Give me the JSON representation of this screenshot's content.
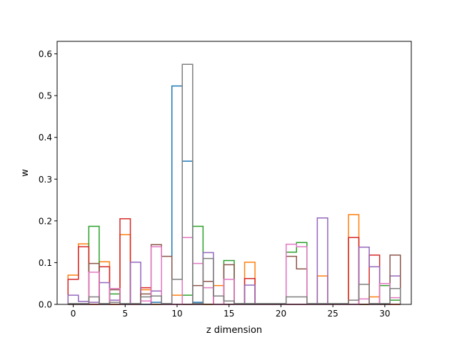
{
  "chart_data": {
    "type": "line",
    "style": "step histogram outlines",
    "title": "",
    "xlabel": "z dimension",
    "ylabel": "w",
    "xlim": [
      -1.55,
      32.55
    ],
    "ylim": [
      0,
      0.63
    ],
    "x_ticks": [
      "0",
      "5",
      "10",
      "15",
      "20",
      "25",
      "30"
    ],
    "y_ticks": [
      "0.0",
      "0.1",
      "0.2",
      "0.3",
      "0.4",
      "0.5",
      "0.6"
    ],
    "grid": false,
    "legend": "none",
    "bin_edges": [
      -0.5,
      0.5,
      1.5,
      2.5,
      3.5,
      4.5,
      5.5,
      6.5,
      7.5,
      8.5,
      9.5,
      10.5,
      11.5,
      12.5,
      13.5,
      14.5,
      15.5,
      16.5,
      17.5,
      18.5,
      19.5,
      20.5,
      21.5,
      22.5,
      23.5,
      24.5,
      25.5,
      26.5,
      27.5,
      28.5,
      29.5,
      30.5,
      31.5
    ],
    "series": [
      {
        "color": "#1f77b4",
        "values": [
          0.0,
          0.0,
          0.0,
          0.0,
          0.0,
          0.0,
          0.0,
          0.0,
          0.005,
          0.0,
          0.523,
          0.343,
          0.005,
          0.0,
          0.0,
          0.0,
          0.0,
          0.0,
          0.0,
          0.0,
          0.0,
          0.0,
          0.0,
          0.0,
          0.0,
          0.0,
          0.0,
          0.0,
          0.0,
          0.0,
          0.0,
          0.0
        ]
      },
      {
        "color": "#ff7f0e",
        "values": [
          0.07,
          0.145,
          0.0,
          0.102,
          0.0,
          0.167,
          0.0,
          0.035,
          0.0,
          0.0,
          0.022,
          0.0,
          0.0,
          0.0,
          0.045,
          0.0,
          0.0,
          0.101,
          0.0,
          0.0,
          0.0,
          0.0,
          0.0,
          0.0,
          0.068,
          0.0,
          0.0,
          0.215,
          0.0,
          0.018,
          0.0,
          0.0
        ]
      },
      {
        "color": "#2ca02c",
        "values": [
          0.0,
          0.0,
          0.187,
          0.0,
          0.025,
          0.0,
          0.0,
          0.0,
          0.0,
          0.0,
          0.0,
          0.022,
          0.187,
          0.0,
          0.0,
          0.105,
          0.0,
          0.0,
          0.0,
          0.0,
          0.0,
          0.125,
          0.148,
          0.0,
          0.0,
          0.0,
          0.0,
          0.0,
          0.0,
          0.0,
          0.045,
          0.01
        ]
      },
      {
        "color": "#d62728",
        "values": [
          0.06,
          0.138,
          0.0,
          0.09,
          0.0,
          0.205,
          0.0,
          0.04,
          0.0,
          0.0,
          0.0,
          0.0,
          0.0,
          0.0,
          0.0,
          0.0,
          0.0,
          0.062,
          0.0,
          0.0,
          0.0,
          0.0,
          0.0,
          0.0,
          0.0,
          0.0,
          0.0,
          0.16,
          0.0,
          0.118,
          0.0,
          0.0
        ]
      },
      {
        "color": "#9467bd",
        "values": [
          0.022,
          0.007,
          0.005,
          0.052,
          0.01,
          0.0,
          0.101,
          0.0,
          0.032,
          0.0,
          0.0,
          0.0,
          0.0,
          0.124,
          0.0,
          0.0,
          0.0,
          0.046,
          0.0,
          0.0,
          0.0,
          0.0,
          0.0,
          0.0,
          0.207,
          0.0,
          0.0,
          0.0,
          0.137,
          0.09,
          0.0,
          0.068
        ]
      },
      {
        "color": "#8c564b",
        "values": [
          0.0,
          0.0,
          0.098,
          0.0,
          0.035,
          0.0,
          0.0,
          0.025,
          0.143,
          0.115,
          0.0,
          0.0,
          0.045,
          0.055,
          0.0,
          0.095,
          0.0,
          0.0,
          0.0,
          0.0,
          0.0,
          0.115,
          0.085,
          0.0,
          0.0,
          0.0,
          0.0,
          0.0,
          0.0,
          0.0,
          0.0,
          0.118
        ]
      },
      {
        "color": "#e377c2",
        "values": [
          0.0,
          0.0,
          0.077,
          0.0,
          0.038,
          0.0,
          0.0,
          0.008,
          0.138,
          0.0,
          0.0,
          0.16,
          0.098,
          0.04,
          0.0,
          0.06,
          0.0,
          0.0,
          0.0,
          0.0,
          0.0,
          0.144,
          0.138,
          0.0,
          0.0,
          0.0,
          0.0,
          0.0,
          0.013,
          0.0,
          0.05,
          0.016
        ]
      },
      {
        "color": "#7f7f7f",
        "values": [
          0.002,
          0.002,
          0.018,
          0.002,
          0.005,
          0.002,
          0.002,
          0.018,
          0.02,
          0.002,
          0.06,
          0.575,
          0.002,
          0.11,
          0.02,
          0.008,
          0.002,
          0.002,
          0.002,
          0.002,
          0.002,
          0.018,
          0.018,
          0.002,
          0.002,
          0.002,
          0.002,
          0.01,
          0.048,
          0.002,
          0.002,
          0.038
        ]
      }
    ]
  }
}
